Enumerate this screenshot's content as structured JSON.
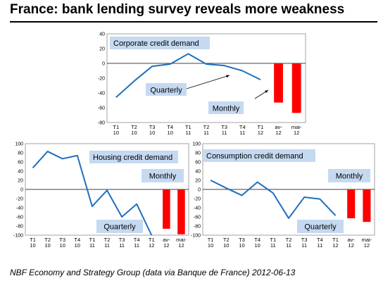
{
  "title": "France: bank lending survey reveals more weakness",
  "footer": "NBF Economy and Strategy Group (data via Banque de France) 2012-06-13",
  "colors": {
    "line": "#1f6fbf",
    "bar": "#ff0000",
    "box": "#c5d9f1"
  },
  "chart_data": [
    {
      "type": "line",
      "title": "Corporate credit demand",
      "annotations": [
        "Quarterly",
        "Monthly"
      ],
      "ylim": [
        -80,
        40
      ],
      "yticks": [
        40,
        20,
        0,
        -20,
        -40,
        -60,
        -80
      ],
      "categories": [
        [
          "T1",
          "10"
        ],
        [
          "T2",
          "10"
        ],
        [
          "T3",
          "10"
        ],
        [
          "T4",
          "10"
        ],
        [
          "T1",
          "11"
        ],
        [
          "T2",
          "11"
        ],
        [
          "T3",
          "11"
        ],
        [
          "T4",
          "11"
        ],
        [
          "T1",
          "12"
        ],
        [
          "av-",
          "12"
        ],
        [
          "mai-",
          "12"
        ]
      ],
      "series": [
        {
          "kind": "line",
          "values": [
            -46,
            -24,
            -4,
            -1,
            13,
            -1,
            -3,
            -10,
            -22,
            null,
            null
          ]
        },
        {
          "kind": "bar",
          "values": [
            null,
            null,
            null,
            null,
            null,
            null,
            null,
            null,
            null,
            -53,
            -67
          ]
        }
      ]
    },
    {
      "type": "line",
      "title": "Housing credit demand",
      "annotations": [
        "Monthly",
        "Quarterly"
      ],
      "ylim": [
        -100,
        100
      ],
      "yticks": [
        100,
        80,
        60,
        40,
        20,
        0,
        -20,
        -40,
        -60,
        -80,
        -100
      ],
      "categories": [
        [
          "T1",
          "10"
        ],
        [
          "T2",
          "10"
        ],
        [
          "T3",
          "10"
        ],
        [
          "T4",
          "10"
        ],
        [
          "T1",
          "11"
        ],
        [
          "T2",
          "11"
        ],
        [
          "T3",
          "11"
        ],
        [
          "T4",
          "11"
        ],
        [
          "T1",
          "12"
        ],
        [
          "av-",
          "12"
        ],
        [
          "mai-",
          "12"
        ]
      ],
      "series": [
        {
          "kind": "line",
          "values": [
            47,
            83,
            67,
            74,
            -37,
            -2,
            -60,
            -32,
            -100,
            null,
            null
          ]
        },
        {
          "kind": "bar",
          "values": [
            null,
            null,
            null,
            null,
            null,
            null,
            null,
            null,
            null,
            -86,
            -98
          ]
        }
      ]
    },
    {
      "type": "line",
      "title": "Consumption credit demand",
      "annotations": [
        "Monthly",
        "Quarterly"
      ],
      "ylim": [
        -100,
        100
      ],
      "yticks": [
        100,
        80,
        60,
        40,
        20,
        0,
        -20,
        -40,
        -60,
        -80,
        -100
      ],
      "categories": [
        [
          "T1",
          "10"
        ],
        [
          "T2",
          "10"
        ],
        [
          "T3",
          "10"
        ],
        [
          "T4",
          "10"
        ],
        [
          "T1",
          "11"
        ],
        [
          "T2",
          "11"
        ],
        [
          "T3",
          "11"
        ],
        [
          "T4",
          "11"
        ],
        [
          "T1",
          "12"
        ],
        [
          "av-",
          "12"
        ],
        [
          "mai-",
          "12"
        ]
      ],
      "series": [
        {
          "kind": "line",
          "values": [
            20,
            3,
            -13,
            16,
            -8,
            -63,
            -17,
            -21,
            -57,
            null,
            null
          ]
        },
        {
          "kind": "bar",
          "values": [
            null,
            null,
            null,
            null,
            null,
            null,
            null,
            null,
            null,
            -63,
            -71
          ]
        }
      ]
    }
  ]
}
